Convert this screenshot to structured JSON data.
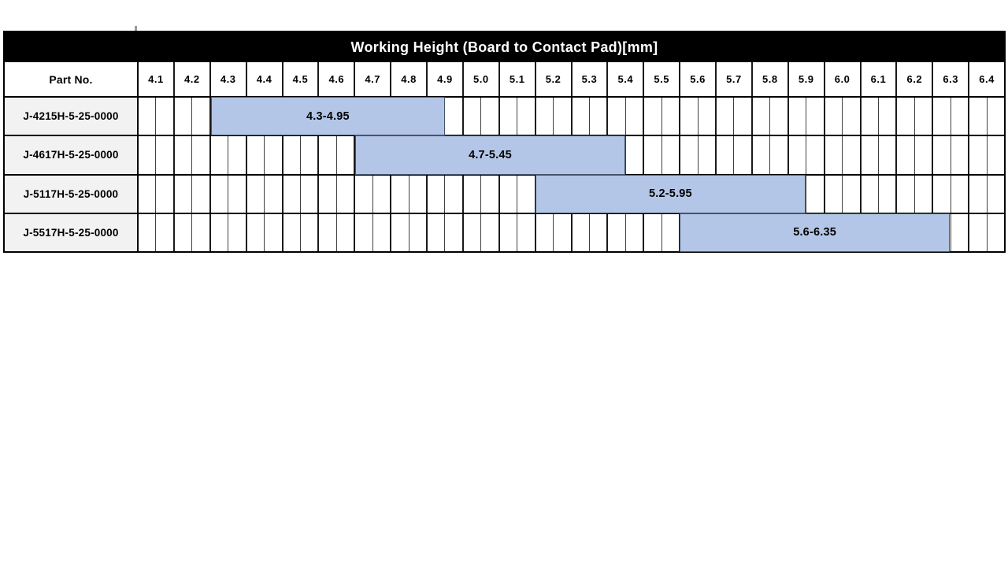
{
  "title": "Working Height (Board to Contact Pad)[mm]",
  "colors": {
    "title_bg": "#000000",
    "title_text": "#ffffff",
    "part_cell_bg": "#f2f2f2",
    "bar_fill": "#b4c6e7",
    "bar_border": "#44546a",
    "grid_line": "#3f3f3f",
    "border": "#000000"
  },
  "chart_data": {
    "type": "range-bar",
    "title": "Working Height (Board to Contact Pad)[mm]",
    "row_header": "Part No.",
    "axis": {
      "min": 4.1,
      "max": 6.5,
      "step": 0.1,
      "minor_step": 0.05,
      "unit": "mm"
    },
    "tick_labels": [
      "4.1",
      "4.2",
      "4.3",
      "4.4",
      "4.5",
      "4.6",
      "4.7",
      "4.8",
      "4.9",
      "5.0",
      "5.1",
      "5.2",
      "5.3",
      "5.4",
      "5.5",
      "5.6",
      "5.7",
      "5.8",
      "5.9",
      "6.0",
      "6.1",
      "6.2",
      "6.3",
      "6.4"
    ],
    "rows": [
      {
        "part_no": "J-4215H-5-25-0000",
        "start": 4.3,
        "end": 4.95,
        "label": "4.3-4.95"
      },
      {
        "part_no": "J-4617H-5-25-0000",
        "start": 4.7,
        "end": 5.45,
        "label": "4.7-5.45"
      },
      {
        "part_no": "J-5117H-5-25-0000",
        "start": 5.2,
        "end": 5.95,
        "label": "5.2-5.95"
      },
      {
        "part_no": "J-5517H-5-25-0000",
        "start": 5.6,
        "end": 6.35,
        "label": "5.6-6.35"
      }
    ]
  }
}
